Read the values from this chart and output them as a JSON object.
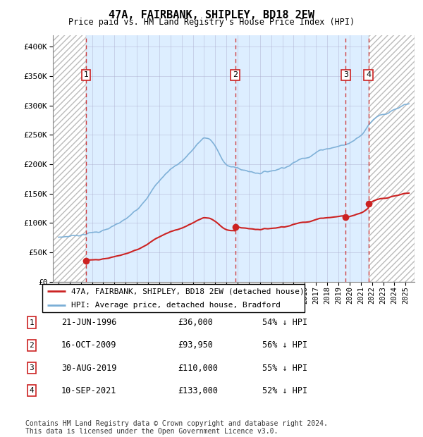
{
  "title": "47A, FAIRBANK, SHIPLEY, BD18 2EW",
  "subtitle": "Price paid vs. HM Land Registry's House Price Index (HPI)",
  "legend_line1": "47A, FAIRBANK, SHIPLEY, BD18 2EW (detached house)",
  "legend_line2": "HPI: Average price, detached house, Bradford",
  "footer_line1": "Contains HM Land Registry data © Crown copyright and database right 2024.",
  "footer_line2": "This data is licensed under the Open Government Licence v3.0.",
  "sale_dates_num": [
    1996.47,
    2009.79,
    2019.66,
    2021.69
  ],
  "sale_prices": [
    36000,
    93950,
    110000,
    133000
  ],
  "sale_labels": [
    "1",
    "2",
    "3",
    "4"
  ],
  "sale_date_strings": [
    "21-JUN-1996",
    "16-OCT-2009",
    "30-AUG-2019",
    "10-SEP-2021"
  ],
  "sale_price_strings": [
    "£36,000",
    "£93,950",
    "£110,000",
    "£133,000"
  ],
  "sale_hpi_strings": [
    "54% ↓ HPI",
    "56% ↓ HPI",
    "55% ↓ HPI",
    "52% ↓ HPI"
  ],
  "hpi_color": "#7aaed6",
  "sale_color": "#cc2222",
  "bg_color": "#ddeeff",
  "ylim": [
    0,
    420000
  ],
  "xlim_left": 1993.5,
  "xlim_right": 2025.8
}
